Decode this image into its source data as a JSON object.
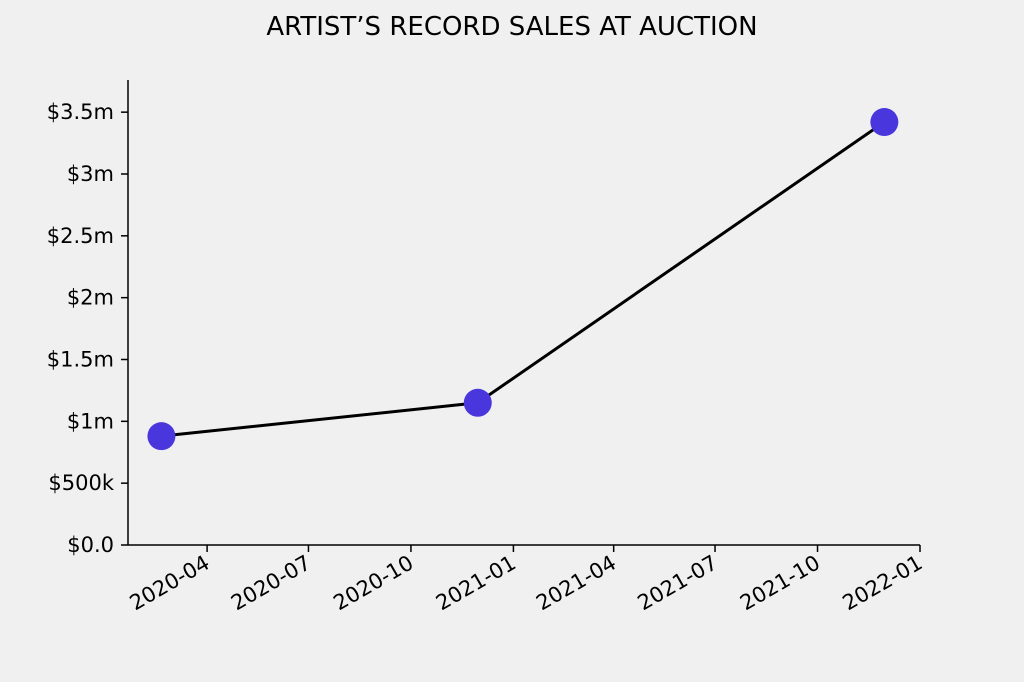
{
  "chart_data": {
    "type": "line",
    "title": "ARTIST’S RECORD SALES AT AUCTION",
    "xlabel": "",
    "ylabel": "",
    "x": [
      "2020-02-20",
      "2020-11-30",
      "2021-11-30"
    ],
    "series": [
      {
        "values": [
          880000,
          1150000,
          3420000
        ]
      }
    ],
    "xlim": [
      "2020-01-21",
      "2022-01-01"
    ],
    "ylim": [
      0,
      3760000
    ],
    "yticks": [
      {
        "value": 0,
        "label": "$0.0"
      },
      {
        "value": 500000,
        "label": "$500k"
      },
      {
        "value": 1000000,
        "label": "$1m"
      },
      {
        "value": 1500000,
        "label": "$1.5m"
      },
      {
        "value": 2000000,
        "label": "$2m"
      },
      {
        "value": 2500000,
        "label": "$2.5m"
      },
      {
        "value": 3000000,
        "label": "$3m"
      },
      {
        "value": 3500000,
        "label": "$3.5m"
      }
    ],
    "xticks": [
      {
        "value": "2020-04-01",
        "label": "2020-04"
      },
      {
        "value": "2020-07-01",
        "label": "2020-07"
      },
      {
        "value": "2020-10-01",
        "label": "2020-10"
      },
      {
        "value": "2021-01-01",
        "label": "2021-01"
      },
      {
        "value": "2021-04-01",
        "label": "2021-04"
      },
      {
        "value": "2021-07-01",
        "label": "2021-07"
      },
      {
        "value": "2021-10-01",
        "label": "2021-10"
      },
      {
        "value": "2022-01-01",
        "label": "2022-01"
      }
    ],
    "grid": false,
    "legend": "none",
    "colors": {
      "line": "#000000",
      "marker": "#4936dd",
      "background": "#f0f0f0"
    }
  }
}
